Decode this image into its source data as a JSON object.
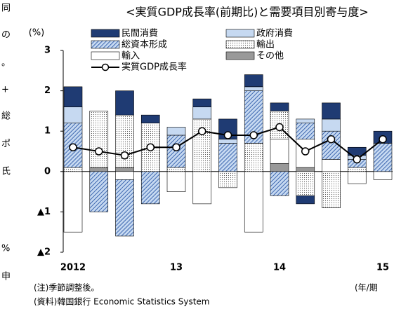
{
  "margin_text": [
    "同",
    "の",
    "。",
    "+",
    "総",
    "ポ",
    "氏",
    "%",
    "申"
  ],
  "chart_data": {
    "type": "stacked_bar_line",
    "title": "<実質GDP成長率(前期比)と需要項目別寄与度>",
    "y_unit": "(%)",
    "categories": [
      "2012",
      null,
      null,
      null,
      "13",
      null,
      null,
      null,
      "14",
      null,
      null,
      null,
      "15"
    ],
    "x_unit": "(年/期",
    "ylim": [
      -2,
      3
    ],
    "yticks": [
      {
        "value": -2,
        "label": "▲2"
      },
      {
        "value": -1,
        "label": "▲1"
      },
      0,
      1,
      2,
      3
    ],
    "series": [
      {
        "name": "民間消費",
        "color": "#1f3b73",
        "fill_style": "solid",
        "values": [
          0.5,
          0,
          0.6,
          0.2,
          0,
          0.2,
          0.5,
          0.3,
          0.2,
          -0.2,
          0.4,
          0.2,
          0.3
        ]
      },
      {
        "name": "政府消費",
        "color": "#c6d9f1",
        "fill_style": "solid",
        "values": [
          0.4,
          0,
          0,
          0,
          0.2,
          0.3,
          0.1,
          0.1,
          0,
          0.1,
          0.3,
          0.1,
          0
        ]
      },
      {
        "name": "総資本形成",
        "color": "#2e5aa8",
        "fill_style": "hatch",
        "values": [
          1.1,
          -1.0,
          -1.4,
          -0.8,
          0.8,
          0,
          0.7,
          1.3,
          -0.6,
          0.4,
          0.7,
          0.2,
          0.7
        ]
      },
      {
        "name": "輸出",
        "color": "#555555",
        "fill_style": "dots",
        "values": [
          0.1,
          1.4,
          1.3,
          1.2,
          0.1,
          1.3,
          -0.4,
          0.7,
          0.7,
          -0.6,
          -0.9,
          0.1,
          0
        ]
      },
      {
        "name": "輸入",
        "color": "#ffffff",
        "fill_style": "solid",
        "values": [
          -1.5,
          0,
          -0.2,
          0,
          -0.5,
          -0.8,
          0,
          -1.5,
          0.6,
          0.7,
          0.3,
          -0.3,
          -0.2
        ]
      },
      {
        "name": "その他",
        "color": "#999999",
        "fill_style": "solid",
        "values": [
          0,
          0.1,
          0.1,
          0,
          0,
          0,
          0,
          0,
          0.2,
          0.1,
          0,
          0,
          0
        ]
      }
    ],
    "line": {
      "name": "実質GDP成長率",
      "color": "#000000",
      "values": [
        0.6,
        0.5,
        0.4,
        0.6,
        0.6,
        1.0,
        0.9,
        0.9,
        1.1,
        0.5,
        0.8,
        0.3,
        0.8
      ]
    },
    "notes": [
      "(注)季節調整後。",
      "(資料)韓国銀行 Economic Statistics System"
    ]
  }
}
